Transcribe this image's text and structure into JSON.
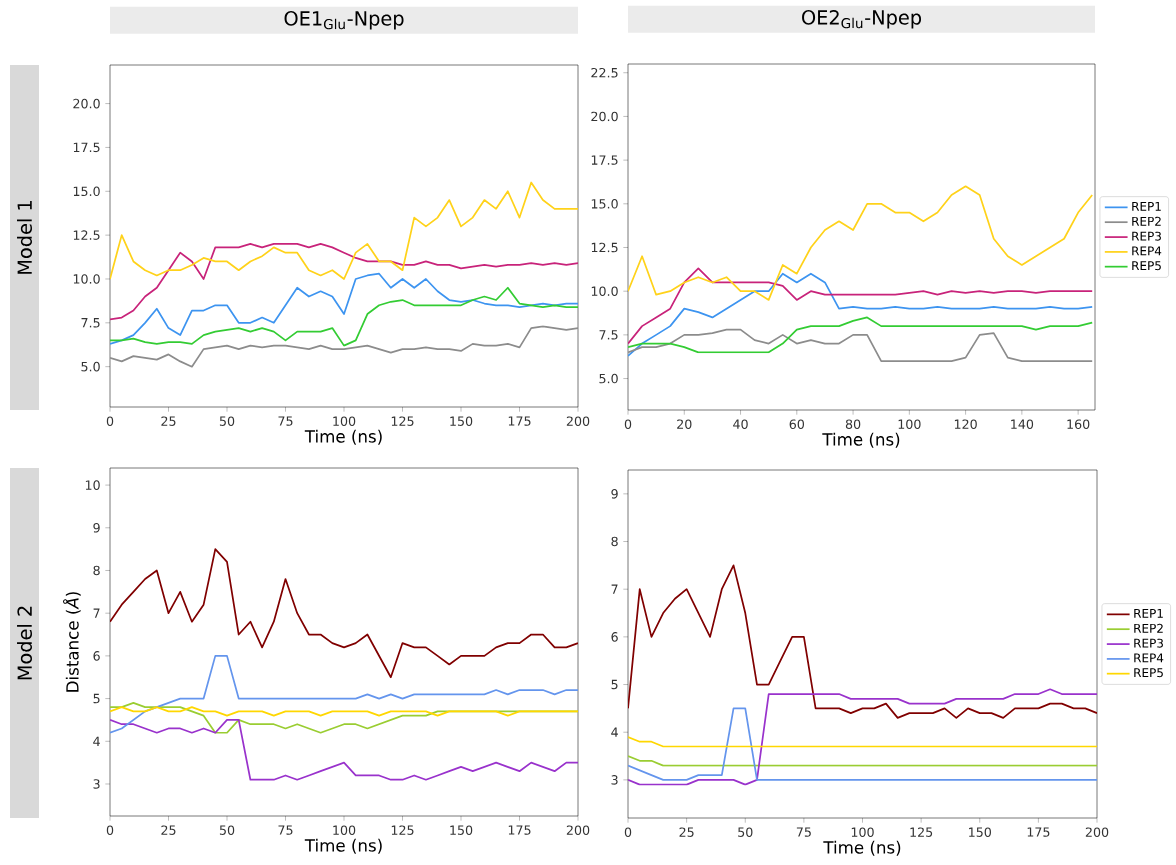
{
  "chart_data": [
    {
      "type": "line",
      "title": "OE1$_{Glu}$-Npep",
      "xlabel": "Time (ns)",
      "annotations": [
        "Model 1"
      ],
      "x": [
        0,
        5,
        10,
        15,
        20,
        25,
        30,
        35,
        40,
        45,
        50,
        55,
        60,
        65,
        70,
        75,
        80,
        85,
        90,
        95,
        100,
        105,
        110,
        115,
        120,
        125,
        130,
        135,
        140,
        145,
        150,
        155,
        160,
        165,
        170,
        175,
        180,
        185,
        190,
        195,
        200
      ],
      "xlim": [
        0,
        200
      ],
      "xticks": [
        0,
        25,
        50,
        75,
        100,
        125,
        150,
        175,
        200
      ],
      "ylim": [
        2.7,
        22.2
      ],
      "yticks": [
        {
          "value": 5,
          "label": "5.0"
        },
        7.5,
        {
          "value": 10,
          "label": "10.0"
        },
        12.5,
        {
          "value": 15,
          "label": "15.0"
        },
        17.5,
        {
          "value": 20,
          "label": "20.0"
        }
      ],
      "series": [
        {
          "color": "#3d94f0",
          "values": [
            6.3,
            6.5,
            6.8,
            7.5,
            8.3,
            7.2,
            6.8,
            8.2,
            8.2,
            8.5,
            8.5,
            7.5,
            7.5,
            7.8,
            7.5,
            8.5,
            9.5,
            9.0,
            9.3,
            9.0,
            8.0,
            10.0,
            10.2,
            10.3,
            9.5,
            10.0,
            9.5,
            10.0,
            9.3,
            8.8,
            8.7,
            8.8,
            8.6,
            8.5,
            8.5,
            8.4,
            8.5,
            8.6,
            8.5,
            8.6,
            8.6
          ]
        },
        {
          "color": "#8c8c8c",
          "values": [
            5.5,
            5.3,
            5.6,
            5.5,
            5.4,
            5.7,
            5.3,
            5.0,
            6.0,
            6.1,
            6.2,
            6.0,
            6.2,
            6.1,
            6.2,
            6.2,
            6.1,
            6.0,
            6.2,
            6.0,
            6.0,
            6.1,
            6.2,
            6.0,
            5.8,
            6.0,
            6.0,
            6.1,
            6.0,
            6.0,
            5.9,
            6.3,
            6.2,
            6.2,
            6.3,
            6.1,
            7.2,
            7.3,
            7.2,
            7.1,
            7.2
          ]
        },
        {
          "color": "#c8237a",
          "values": [
            7.7,
            7.8,
            8.2,
            9.0,
            9.5,
            10.5,
            11.5,
            11.0,
            10.0,
            11.8,
            11.8,
            11.8,
            12.0,
            11.8,
            12.0,
            12.0,
            12.0,
            11.8,
            12.0,
            11.8,
            11.5,
            11.2,
            11.0,
            11.0,
            11.0,
            10.8,
            10.8,
            11.0,
            10.8,
            10.8,
            10.6,
            10.7,
            10.8,
            10.7,
            10.8,
            10.8,
            10.9,
            10.8,
            10.9,
            10.8,
            10.9
          ]
        },
        {
          "color": "#ffd21a",
          "values": [
            10.0,
            12.5,
            11.0,
            10.5,
            10.2,
            10.5,
            10.5,
            10.8,
            11.2,
            11.0,
            11.0,
            10.5,
            11.0,
            11.3,
            11.8,
            11.5,
            11.5,
            10.5,
            10.2,
            10.5,
            10.0,
            11.5,
            12.0,
            11.0,
            11.0,
            10.5,
            13.5,
            13.0,
            13.5,
            14.5,
            13.0,
            13.5,
            14.5,
            14.0,
            15.0,
            13.5,
            15.5,
            14.5,
            14.0,
            14.0,
            14.0
          ]
        },
        {
          "color": "#33cc33",
          "values": [
            6.5,
            6.5,
            6.6,
            6.4,
            6.3,
            6.4,
            6.4,
            6.3,
            6.8,
            7.0,
            7.1,
            7.2,
            7.0,
            7.2,
            7.0,
            6.5,
            7.0,
            7.0,
            7.0,
            7.2,
            6.2,
            6.5,
            8.0,
            8.5,
            8.7,
            8.8,
            8.5,
            8.5,
            8.5,
            8.5,
            8.5,
            8.8,
            9.0,
            8.8,
            9.5,
            8.6,
            8.5,
            8.4,
            8.5,
            8.4,
            8.4
          ]
        }
      ]
    },
    {
      "type": "line",
      "title": "OE2$_{Glu}$-Npep",
      "xlabel": "Time (ns)",
      "legend": "right",
      "x": [
        0,
        5,
        10,
        15,
        20,
        25,
        30,
        35,
        40,
        45,
        50,
        55,
        60,
        65,
        70,
        75,
        80,
        85,
        90,
        95,
        100,
        105,
        110,
        115,
        120,
        125,
        130,
        135,
        140,
        145,
        150,
        155,
        160,
        165
      ],
      "xlim": [
        0,
        166
      ],
      "xticks": [
        0,
        20,
        40,
        60,
        80,
        100,
        120,
        140,
        160
      ],
      "ylim": [
        3.2,
        23.0
      ],
      "yticks": [
        {
          "value": 5,
          "label": "5.0"
        },
        7.5,
        {
          "value": 10,
          "label": "10.0"
        },
        12.5,
        {
          "value": 15,
          "label": "15.0"
        },
        17.5,
        {
          "value": 20,
          "label": "20.0"
        },
        22.5
      ],
      "series": [
        {
          "name": "REP1",
          "color": "#3d94f0",
          "values": [
            6.3,
            7.0,
            7.5,
            8.0,
            9.0,
            8.8,
            8.5,
            9.0,
            9.5,
            10.0,
            10.0,
            11.0,
            10.5,
            11.0,
            10.5,
            9.0,
            9.1,
            9.0,
            9.0,
            9.1,
            9.0,
            9.0,
            9.1,
            9.0,
            9.0,
            9.0,
            9.1,
            9.0,
            9.0,
            9.0,
            9.1,
            9.0,
            9.0,
            9.1
          ]
        },
        {
          "name": "REP2",
          "color": "#8c8c8c",
          "values": [
            6.5,
            6.8,
            6.8,
            7.0,
            7.5,
            7.5,
            7.6,
            7.8,
            7.8,
            7.2,
            7.0,
            7.5,
            7.0,
            7.2,
            7.0,
            7.0,
            7.5,
            7.5,
            6.0,
            6.0,
            6.0,
            6.0,
            6.0,
            6.0,
            6.2,
            7.5,
            7.6,
            6.2,
            6.0,
            6.0,
            6.0,
            6.0,
            6.0,
            6.0
          ]
        },
        {
          "name": "REP3",
          "color": "#c8237a",
          "values": [
            7.0,
            8.0,
            8.5,
            9.0,
            10.5,
            11.3,
            10.5,
            10.5,
            10.5,
            10.5,
            10.5,
            10.3,
            9.5,
            10.0,
            9.8,
            9.8,
            9.8,
            9.8,
            9.8,
            9.8,
            9.9,
            10.0,
            9.8,
            10.0,
            9.9,
            10.0,
            9.9,
            10.0,
            10.0,
            9.9,
            10.0,
            10.0,
            10.0,
            10.0
          ]
        },
        {
          "name": "REP4",
          "color": "#ffd21a",
          "values": [
            10.0,
            12.0,
            9.8,
            10.0,
            10.5,
            10.8,
            10.5,
            10.8,
            10.0,
            10.0,
            9.5,
            11.5,
            11.0,
            12.5,
            13.5,
            14.0,
            13.5,
            15.0,
            15.0,
            14.5,
            14.5,
            14.0,
            14.5,
            15.5,
            16.0,
            15.5,
            13.0,
            12.0,
            11.5,
            12.0,
            12.5,
            13.0,
            14.5,
            15.5
          ]
        },
        {
          "name": "REP5",
          "color": "#33cc33",
          "values": [
            6.8,
            7.0,
            7.0,
            7.0,
            6.8,
            6.5,
            6.5,
            6.5,
            6.5,
            6.5,
            6.5,
            7.0,
            7.8,
            8.0,
            8.0,
            8.0,
            8.3,
            8.5,
            8.0,
            8.0,
            8.0,
            8.0,
            8.0,
            8.0,
            8.0,
            8.0,
            8.0,
            8.0,
            8.0,
            7.8,
            8.0,
            8.0,
            8.0,
            8.2
          ]
        }
      ]
    },
    {
      "type": "line",
      "xlabel": "Time (ns)",
      "ylabel": "Distance (*Å*)",
      "annotations": [
        "Model 2"
      ],
      "x": [
        0,
        5,
        10,
        15,
        20,
        25,
        30,
        35,
        40,
        45,
        50,
        55,
        60,
        65,
        70,
        75,
        80,
        85,
        90,
        95,
        100,
        105,
        110,
        115,
        120,
        125,
        130,
        135,
        140,
        145,
        150,
        155,
        160,
        165,
        170,
        175,
        180,
        185,
        190,
        195,
        200
      ],
      "xlim": [
        0,
        200
      ],
      "xticks": [
        0,
        25,
        50,
        75,
        100,
        125,
        150,
        175,
        200
      ],
      "ylim": [
        2.25,
        10.4
      ],
      "yticks": [
        3,
        4,
        5,
        6,
        7,
        8,
        9,
        10
      ],
      "series": [
        {
          "color": "#800000",
          "values": [
            6.8,
            7.2,
            7.5,
            7.8,
            8.0,
            7.0,
            7.5,
            6.8,
            7.2,
            8.5,
            8.2,
            6.5,
            6.8,
            6.2,
            6.8,
            7.8,
            7.0,
            6.5,
            6.5,
            6.3,
            6.2,
            6.3,
            6.5,
            6.0,
            5.5,
            6.3,
            6.2,
            6.2,
            6.0,
            5.8,
            6.0,
            6.0,
            6.0,
            6.2,
            6.3,
            6.3,
            6.5,
            6.5,
            6.2,
            6.2,
            6.3
          ]
        },
        {
          "color": "#9acd32",
          "values": [
            4.8,
            4.8,
            4.9,
            4.8,
            4.8,
            4.8,
            4.8,
            4.7,
            4.6,
            4.2,
            4.2,
            4.5,
            4.4,
            4.4,
            4.4,
            4.3,
            4.4,
            4.3,
            4.2,
            4.3,
            4.4,
            4.4,
            4.3,
            4.4,
            4.5,
            4.6,
            4.6,
            4.6,
            4.7,
            4.7,
            4.7,
            4.7,
            4.7,
            4.7,
            4.7,
            4.7,
            4.7,
            4.7,
            4.7,
            4.7,
            4.7
          ]
        },
        {
          "color": "#9932cc",
          "values": [
            4.5,
            4.4,
            4.4,
            4.3,
            4.2,
            4.3,
            4.3,
            4.2,
            4.3,
            4.2,
            4.5,
            4.5,
            3.1,
            3.1,
            3.1,
            3.2,
            3.1,
            3.2,
            3.3,
            3.4,
            3.5,
            3.2,
            3.2,
            3.2,
            3.1,
            3.1,
            3.2,
            3.1,
            3.2,
            3.3,
            3.4,
            3.3,
            3.4,
            3.5,
            3.4,
            3.3,
            3.5,
            3.4,
            3.3,
            3.5,
            3.5
          ]
        },
        {
          "color": "#6495ed",
          "values": [
            4.2,
            4.3,
            4.5,
            4.7,
            4.8,
            4.9,
            5.0,
            5.0,
            5.0,
            6.0,
            6.0,
            5.0,
            5.0,
            5.0,
            5.0,
            5.0,
            5.0,
            5.0,
            5.0,
            5.0,
            5.0,
            5.0,
            5.1,
            5.0,
            5.1,
            5.0,
            5.1,
            5.1,
            5.1,
            5.1,
            5.1,
            5.1,
            5.1,
            5.2,
            5.1,
            5.2,
            5.2,
            5.2,
            5.1,
            5.2,
            5.2
          ]
        },
        {
          "color": "#ffd700",
          "values": [
            4.7,
            4.8,
            4.7,
            4.7,
            4.8,
            4.7,
            4.7,
            4.8,
            4.7,
            4.7,
            4.6,
            4.7,
            4.7,
            4.7,
            4.6,
            4.7,
            4.7,
            4.7,
            4.6,
            4.7,
            4.7,
            4.7,
            4.7,
            4.6,
            4.7,
            4.7,
            4.7,
            4.7,
            4.6,
            4.7,
            4.7,
            4.7,
            4.7,
            4.7,
            4.6,
            4.7,
            4.7,
            4.7,
            4.7,
            4.7,
            4.7
          ]
        }
      ]
    },
    {
      "type": "line",
      "xlabel": "Time (ns)",
      "legend": "right",
      "x": [
        0,
        5,
        10,
        15,
        20,
        25,
        30,
        35,
        40,
        45,
        50,
        55,
        60,
        65,
        70,
        75,
        80,
        85,
        90,
        95,
        100,
        105,
        110,
        115,
        120,
        125,
        130,
        135,
        140,
        145,
        150,
        155,
        160,
        165,
        170,
        175,
        180,
        185,
        190,
        195,
        200
      ],
      "xlim": [
        0,
        200
      ],
      "xticks": [
        0,
        25,
        50,
        75,
        100,
        125,
        150,
        175,
        200
      ],
      "ylim": [
        2.2,
        9.5
      ],
      "yticks": [
        3,
        4,
        5,
        6,
        7,
        8,
        9
      ],
      "series": [
        {
          "name": "REP1",
          "color": "#800000",
          "values": [
            4.5,
            7.0,
            6.0,
            6.5,
            6.8,
            7.0,
            6.5,
            6.0,
            7.0,
            7.5,
            6.5,
            5.0,
            5.0,
            5.5,
            6.0,
            6.0,
            4.5,
            4.5,
            4.5,
            4.4,
            4.5,
            4.5,
            4.6,
            4.3,
            4.4,
            4.4,
            4.4,
            4.5,
            4.3,
            4.5,
            4.4,
            4.4,
            4.3,
            4.5,
            4.5,
            4.5,
            4.6,
            4.6,
            4.5,
            4.5,
            4.4
          ]
        },
        {
          "name": "REP2",
          "color": "#9acd32",
          "values": [
            3.5,
            3.4,
            3.4,
            3.3,
            3.3,
            3.3,
            3.3,
            3.3,
            3.3,
            3.3,
            3.3,
            3.3,
            3.3,
            3.3,
            3.3,
            3.3,
            3.3,
            3.3,
            3.3,
            3.3,
            3.3,
            3.3,
            3.3,
            3.3,
            3.3,
            3.3,
            3.3,
            3.3,
            3.3,
            3.3,
            3.3,
            3.3,
            3.3,
            3.3,
            3.3,
            3.3,
            3.3,
            3.3,
            3.3,
            3.3,
            3.3
          ]
        },
        {
          "name": "REP3",
          "color": "#9932cc",
          "values": [
            3.0,
            2.9,
            2.9,
            2.9,
            2.9,
            2.9,
            3.0,
            3.0,
            3.0,
            3.0,
            2.9,
            3.0,
            4.8,
            4.8,
            4.8,
            4.8,
            4.8,
            4.8,
            4.8,
            4.7,
            4.7,
            4.7,
            4.7,
            4.7,
            4.6,
            4.6,
            4.6,
            4.6,
            4.7,
            4.7,
            4.7,
            4.7,
            4.7,
            4.8,
            4.8,
            4.8,
            4.9,
            4.8,
            4.8,
            4.8,
            4.8
          ]
        },
        {
          "name": "REP4",
          "color": "#6495ed",
          "values": [
            3.3,
            3.2,
            3.1,
            3.0,
            3.0,
            3.0,
            3.1,
            3.1,
            3.1,
            4.5,
            4.5,
            3.0,
            3.0,
            3.0,
            3.0,
            3.0,
            3.0,
            3.0,
            3.0,
            3.0,
            3.0,
            3.0,
            3.0,
            3.0,
            3.0,
            3.0,
            3.0,
            3.0,
            3.0,
            3.0,
            3.0,
            3.0,
            3.0,
            3.0,
            3.0,
            3.0,
            3.0,
            3.0,
            3.0,
            3.0,
            3.0
          ]
        },
        {
          "name": "REP5",
          "color": "#ffd700",
          "values": [
            3.9,
            3.8,
            3.8,
            3.7,
            3.7,
            3.7,
            3.7,
            3.7,
            3.7,
            3.7,
            3.7,
            3.7,
            3.7,
            3.7,
            3.7,
            3.7,
            3.7,
            3.7,
            3.7,
            3.7,
            3.7,
            3.7,
            3.7,
            3.7,
            3.7,
            3.7,
            3.7,
            3.7,
            3.7,
            3.7,
            3.7,
            3.7,
            3.7,
            3.7,
            3.7,
            3.7,
            3.7,
            3.7,
            3.7,
            3.7,
            3.7
          ]
        }
      ]
    }
  ]
}
